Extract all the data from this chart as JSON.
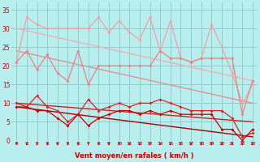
{
  "x": [
    0,
    1,
    2,
    3,
    4,
    5,
    6,
    7,
    8,
    9,
    10,
    11,
    12,
    13,
    14,
    15,
    16,
    17,
    18,
    19,
    20,
    21,
    22,
    23
  ],
  "rafales_max": [
    21,
    33,
    31,
    30,
    30,
    30,
    30,
    30,
    33,
    29,
    32,
    29,
    27,
    33,
    24,
    32,
    22,
    21,
    22,
    31,
    25,
    18,
    10,
    15
  ],
  "rafales": [
    21,
    24,
    19,
    23,
    18,
    16,
    24,
    15,
    20,
    20,
    20,
    20,
    20,
    20,
    24,
    22,
    22,
    21,
    22,
    22,
    22,
    22,
    7,
    16
  ],
  "trend_rafales_max": [
    30,
    16
  ],
  "trend_rafales": [
    24,
    10
  ],
  "vent_max": [
    10,
    9,
    12,
    9,
    8,
    5,
    7,
    11,
    8,
    9,
    10,
    9,
    10,
    10,
    11,
    10,
    9,
    8,
    8,
    8,
    8,
    6,
    1,
    2
  ],
  "vent_moy": [
    9,
    9,
    8,
    8,
    6,
    4,
    7,
    4,
    6,
    7,
    8,
    8,
    7,
    8,
    7,
    8,
    7,
    7,
    7,
    7,
    3,
    3,
    0,
    3
  ],
  "trend_vent_max": [
    10,
    5
  ],
  "trend_vent_moy": [
    9,
    1
  ],
  "color_pink_light": "#f5a0a0",
  "color_pink_med": "#ee8080",
  "color_red_med": "#dd2222",
  "color_red_dark": "#cc0000",
  "color_trend_pink_light": "#f0b0b0",
  "color_trend_pink_med": "#e89090",
  "color_trend_red_med": "#cc2222",
  "color_trend_red_dark": "#aa0000",
  "bg_color": "#b8eeee",
  "grid_color": "#90cccc",
  "xlabel": "Vent moyen/en rafales ( km/h )",
  "yticks": [
    0,
    5,
    10,
    15,
    20,
    25,
    30,
    35
  ],
  "ylim": [
    0,
    37
  ],
  "xlim": [
    -0.5,
    23.5
  ],
  "arrow_color": "#cc0000",
  "tick_color": "#cc0000",
  "label_color": "#cc0000"
}
